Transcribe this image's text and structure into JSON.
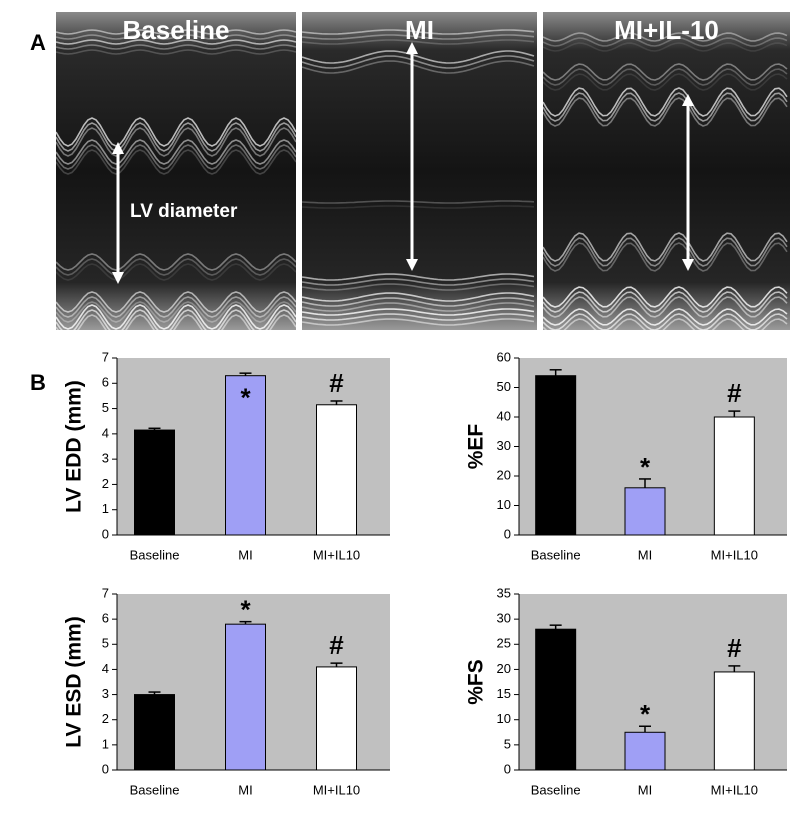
{
  "panel_a": {
    "label": "A",
    "images": [
      "Baseline",
      "MI",
      "MI+IL-10"
    ],
    "annotation": "LV diameter"
  },
  "panel_b": {
    "label": "B"
  },
  "chart_data": [
    {
      "type": "bar",
      "y_label": "LV EDD (mm)",
      "categories": [
        "Baseline",
        "MI",
        "MI+IL10"
      ],
      "values": [
        4.15,
        6.3,
        5.15
      ],
      "errors": [
        0.07,
        0.1,
        0.15
      ],
      "colors": [
        "#000000",
        "#9f9ff5",
        "#ffffff"
      ],
      "ylim": [
        0,
        7
      ],
      "yticks": [
        0,
        1,
        2,
        3,
        4,
        5,
        6,
        7
      ],
      "background": "#c0c0c0",
      "annotations": [
        {
          "category": "MI",
          "text": "*",
          "inside": true
        },
        {
          "category": "MI+IL10",
          "text": "#"
        }
      ]
    },
    {
      "type": "bar",
      "y_label": "%EF",
      "categories": [
        "Baseline",
        "MI",
        "MI+IL10"
      ],
      "values": [
        54,
        16,
        40
      ],
      "errors": [
        2,
        3,
        2
      ],
      "colors": [
        "#000000",
        "#9f9ff5",
        "#ffffff"
      ],
      "ylim": [
        0,
        60
      ],
      "yticks": [
        0,
        10,
        20,
        30,
        40,
        50,
        60
      ],
      "background": "#c0c0c0",
      "annotations": [
        {
          "category": "MI",
          "text": "*"
        },
        {
          "category": "MI+IL10",
          "text": "#"
        }
      ]
    },
    {
      "type": "bar",
      "y_label": "LV ESD (mm)",
      "categories": [
        "Baseline",
        "MI",
        "MI+IL10"
      ],
      "values": [
        3.0,
        5.8,
        4.1
      ],
      "errors": [
        0.1,
        0.1,
        0.15
      ],
      "colors": [
        "#000000",
        "#9f9ff5",
        "#ffffff"
      ],
      "ylim": [
        0,
        7
      ],
      "yticks": [
        0,
        1,
        2,
        3,
        4,
        5,
        6,
        7
      ],
      "background": "#c0c0c0",
      "annotations": [
        {
          "category": "MI",
          "text": "*"
        },
        {
          "category": "MI+IL10",
          "text": "#"
        }
      ]
    },
    {
      "type": "bar",
      "y_label": "%FS",
      "categories": [
        "Baseline",
        "MI",
        "MI+IL10"
      ],
      "values": [
        28,
        7.5,
        19.5
      ],
      "errors": [
        0.8,
        1.2,
        1.2
      ],
      "colors": [
        "#000000",
        "#9f9ff5",
        "#ffffff"
      ],
      "ylim": [
        0,
        35
      ],
      "yticks": [
        0,
        5,
        10,
        15,
        20,
        25,
        30,
        35
      ],
      "background": "#c0c0c0",
      "annotations": [
        {
          "category": "MI",
          "text": "*"
        },
        {
          "category": "MI+IL10",
          "text": "#"
        }
      ]
    }
  ]
}
